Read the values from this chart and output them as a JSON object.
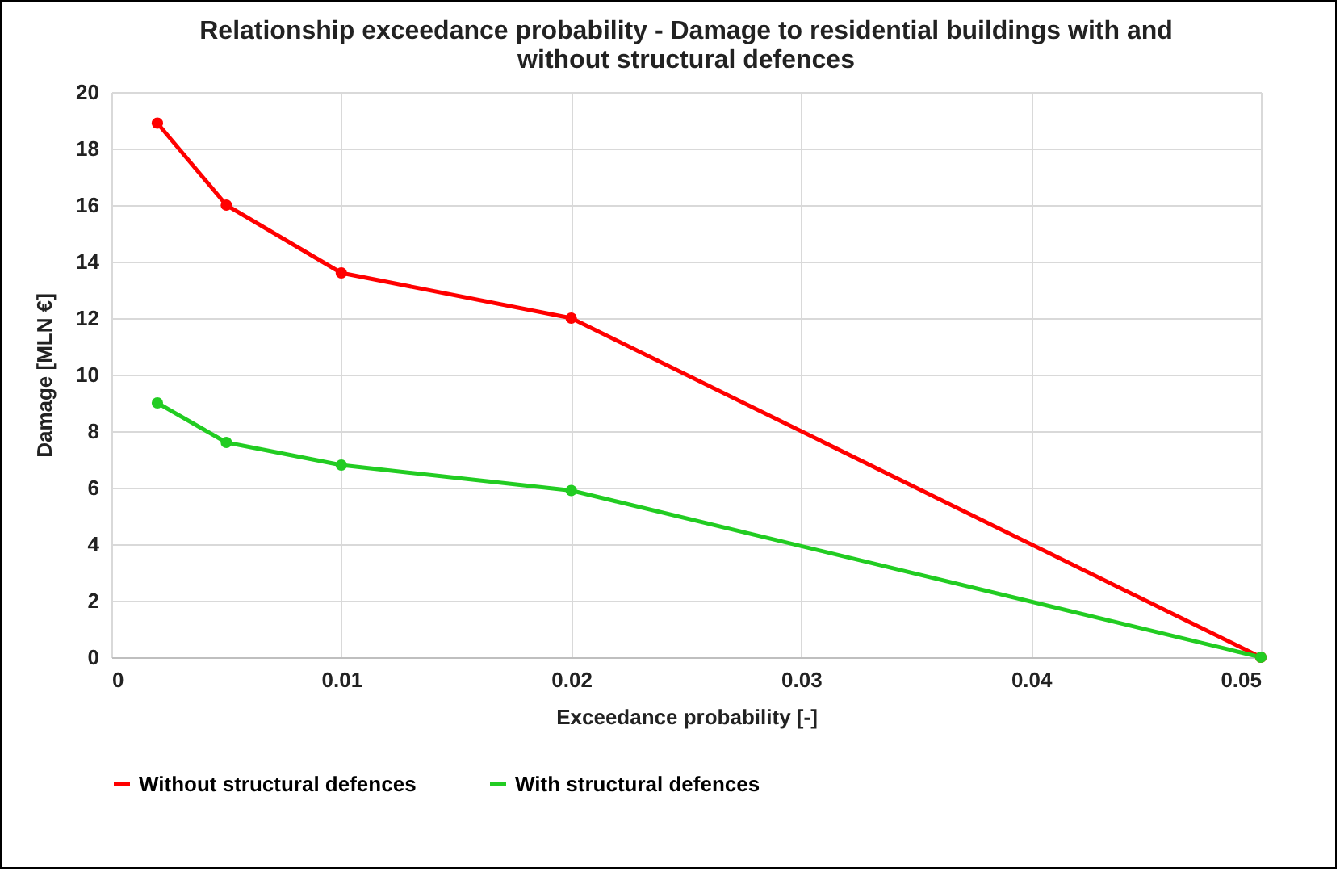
{
  "chart_data": {
    "type": "line",
    "title": "Relationship exceedance probability - Damage to residential buildings with and without structural defences",
    "xlabel": "Exceedance probability [-]",
    "ylabel": "Damage [MLN €]",
    "x": [
      0.002,
      0.005,
      0.01,
      0.02,
      0.05
    ],
    "series": [
      {
        "name": "Without structural defences",
        "color": "#ff0000",
        "values": [
          18.9,
          16.0,
          13.6,
          12.0,
          0
        ]
      },
      {
        "name": "With structural defences",
        "color": "#22cc22",
        "values": [
          9.0,
          7.6,
          6.8,
          5.9,
          0
        ]
      }
    ],
    "xlim": [
      0,
      0.05
    ],
    "xticks": [
      0,
      0.01,
      0.02,
      0.03,
      0.04,
      0.05
    ],
    "ylim": [
      0,
      20
    ],
    "yticks": [
      0,
      2,
      4,
      6,
      8,
      10,
      12,
      14,
      16,
      18,
      20
    ],
    "grid": true,
    "legend": "bottom",
    "marker": "circle",
    "line_style": "solid"
  }
}
